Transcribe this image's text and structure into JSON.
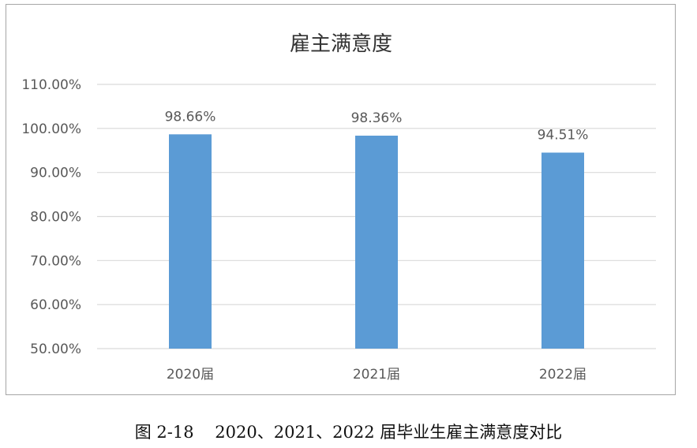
{
  "chart_data": {
    "type": "bar",
    "title": "雇主满意度",
    "categories": [
      "2020届",
      "2021届",
      "2022届"
    ],
    "series": [
      {
        "values": [
          98.66,
          98.36,
          94.51
        ]
      }
    ],
    "data_labels": [
      "98.66%",
      "98.36%",
      "94.51%"
    ],
    "ylim": [
      50,
      110
    ],
    "yticks": [
      50,
      60,
      70,
      80,
      90,
      100,
      110
    ],
    "ytick_labels": [
      "50.00%",
      "60.00%",
      "70.00%",
      "80.00%",
      "90.00%",
      "100.00%",
      "110.00%"
    ],
    "xlabel": "",
    "ylabel": "",
    "grid": true,
    "legend": "none",
    "bar_color": "#5b9bd5",
    "grid_color": "#d9d9d9",
    "text_color": "#595959"
  },
  "caption": "图 2-18    2020、2021、2022 届毕业生雇主满意度对比"
}
